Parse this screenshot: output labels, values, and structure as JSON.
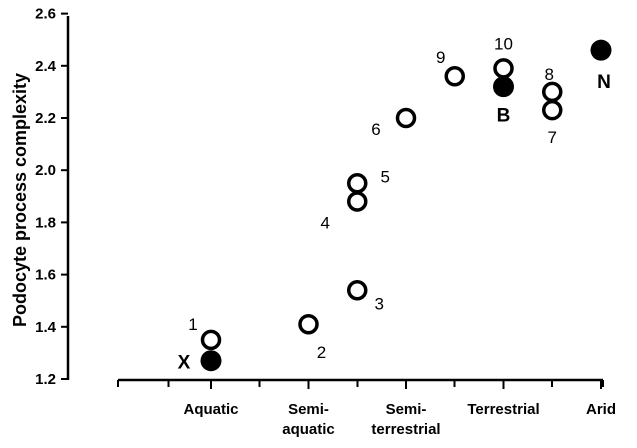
{
  "chart_data": {
    "type": "scatter",
    "ylabel": "Podocyte process complexity",
    "xlabel": "",
    "ylim": [
      1.2,
      2.6
    ],
    "y_ticks": [
      "1.2",
      "1.4",
      "1.6",
      "1.8",
      "2.0",
      "2.2",
      "2.4",
      "2.6"
    ],
    "x_categories": [
      {
        "lines": [
          "Aquatic"
        ]
      },
      {
        "lines": [
          "Semi-",
          "aquatic"
        ]
      },
      {
        "lines": [
          "Semi-",
          "terrestrial"
        ]
      },
      {
        "lines": [
          "Terrestrial"
        ]
      },
      {
        "lines": [
          "Arid"
        ]
      }
    ],
    "points": [
      {
        "label": "1",
        "x": 1.0,
        "y": 1.35,
        "filled": false
      },
      {
        "label": "X",
        "x": 1.0,
        "y": 1.27,
        "filled": true
      },
      {
        "label": "2",
        "x": 2.0,
        "y": 1.41,
        "filled": false
      },
      {
        "label": "3",
        "x": 2.5,
        "y": 1.54,
        "filled": false
      },
      {
        "label": "4",
        "x": 2.5,
        "y": 1.88,
        "filled": false
      },
      {
        "label": "5",
        "x": 2.5,
        "y": 1.95,
        "filled": false
      },
      {
        "label": "6",
        "x": 3.0,
        "y": 2.2,
        "filled": false
      },
      {
        "label": "9",
        "x": 3.5,
        "y": 2.36,
        "filled": false
      },
      {
        "label": "10",
        "x": 4.0,
        "y": 2.39,
        "filled": false
      },
      {
        "label": "B",
        "x": 4.0,
        "y": 2.32,
        "filled": true
      },
      {
        "label": "8",
        "x": 4.5,
        "y": 2.3,
        "filled": false
      },
      {
        "label": "7",
        "x": 4.5,
        "y": 2.23,
        "filled": false
      },
      {
        "label": "N",
        "x": 5.0,
        "y": 2.46,
        "filled": true
      }
    ],
    "grid": false,
    "legend": "none"
  }
}
